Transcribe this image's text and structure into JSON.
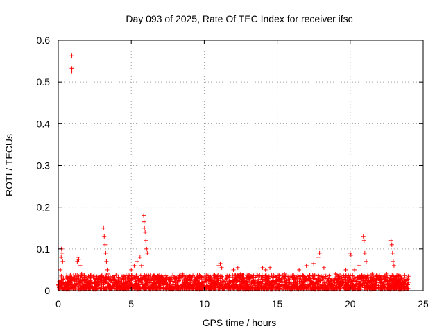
{
  "chart_data": {
    "type": "scatter",
    "title": "Day 093 of 2025, Rate Of TEC Index for receiver ifsc",
    "xlabel": "GPS time / hours",
    "ylabel": "ROTI / TECUs",
    "xlim": [
      0,
      25
    ],
    "ylim": [
      0,
      0.6
    ],
    "x_ticks": [
      "0",
      "5",
      "10",
      "15",
      "20",
      "25"
    ],
    "y_ticks": [
      "0",
      "0.1",
      "0.2",
      "0.3",
      "0.4",
      "0.5",
      "0.6"
    ],
    "grid": true,
    "legend": "none",
    "marker": "+",
    "series_color": "#ff0000",
    "series": [
      {
        "values_note": "",
        "points": [
          [
            0.05,
            0.01
          ],
          [
            0.1,
            0.02
          ],
          [
            0.15,
            0.05
          ],
          [
            0.2,
            0.08
          ],
          [
            0.22,
            0.1
          ],
          [
            0.25,
            0.09
          ],
          [
            0.3,
            0.07
          ],
          [
            0.35,
            0.03
          ],
          [
            0.93,
            0.563
          ],
          [
            0.93,
            0.533
          ],
          [
            0.93,
            0.526
          ],
          [
            1.3,
            0.07
          ],
          [
            1.35,
            0.08
          ],
          [
            1.4,
            0.075
          ],
          [
            1.5,
            0.06
          ],
          [
            1.6,
            0.04
          ],
          [
            3.1,
            0.15
          ],
          [
            3.15,
            0.13
          ],
          [
            3.2,
            0.11
          ],
          [
            3.25,
            0.09
          ],
          [
            3.3,
            0.07
          ],
          [
            3.35,
            0.05
          ],
          [
            3.4,
            0.04
          ],
          [
            4.4,
            0.03
          ],
          [
            4.6,
            0.02
          ],
          [
            5.0,
            0.05
          ],
          [
            5.2,
            0.06
          ],
          [
            5.4,
            0.07
          ],
          [
            5.6,
            0.08
          ],
          [
            5.7,
            0.06
          ],
          [
            5.85,
            0.18
          ],
          [
            5.88,
            0.165
          ],
          [
            5.9,
            0.15
          ],
          [
            5.95,
            0.14
          ],
          [
            6.0,
            0.12
          ],
          [
            6.05,
            0.1
          ],
          [
            6.1,
            0.09
          ],
          [
            7.0,
            0.02
          ],
          [
            8.0,
            0.03
          ],
          [
            8.5,
            0.04
          ],
          [
            9.5,
            0.03
          ],
          [
            11.0,
            0.06
          ],
          [
            11.1,
            0.065
          ],
          [
            11.2,
            0.055
          ],
          [
            12.0,
            0.05
          ],
          [
            12.3,
            0.055
          ],
          [
            12.5,
            0.04
          ],
          [
            14.0,
            0.055
          ],
          [
            14.2,
            0.05
          ],
          [
            14.5,
            0.055
          ],
          [
            15.5,
            0.04
          ],
          [
            16.5,
            0.05
          ],
          [
            17.0,
            0.06
          ],
          [
            17.5,
            0.065
          ],
          [
            17.8,
            0.08
          ],
          [
            17.9,
            0.09
          ],
          [
            18.2,
            0.055
          ],
          [
            19.0,
            0.04
          ],
          [
            19.7,
            0.05
          ],
          [
            20.0,
            0.09
          ],
          [
            20.05,
            0.085
          ],
          [
            20.3,
            0.05
          ],
          [
            20.6,
            0.06
          ],
          [
            20.9,
            0.13
          ],
          [
            20.95,
            0.12
          ],
          [
            21.0,
            0.09
          ],
          [
            21.1,
            0.07
          ],
          [
            21.5,
            0.04
          ],
          [
            22.0,
            0.035
          ],
          [
            22.5,
            0.04
          ],
          [
            22.8,
            0.12
          ],
          [
            22.85,
            0.11
          ],
          [
            22.9,
            0.09
          ],
          [
            22.95,
            0.07
          ],
          [
            23.0,
            0.06
          ],
          [
            23.5,
            0.03
          ],
          [
            23.9,
            0.025
          ],
          [
            24.0,
            0.02
          ]
        ]
      }
    ]
  }
}
